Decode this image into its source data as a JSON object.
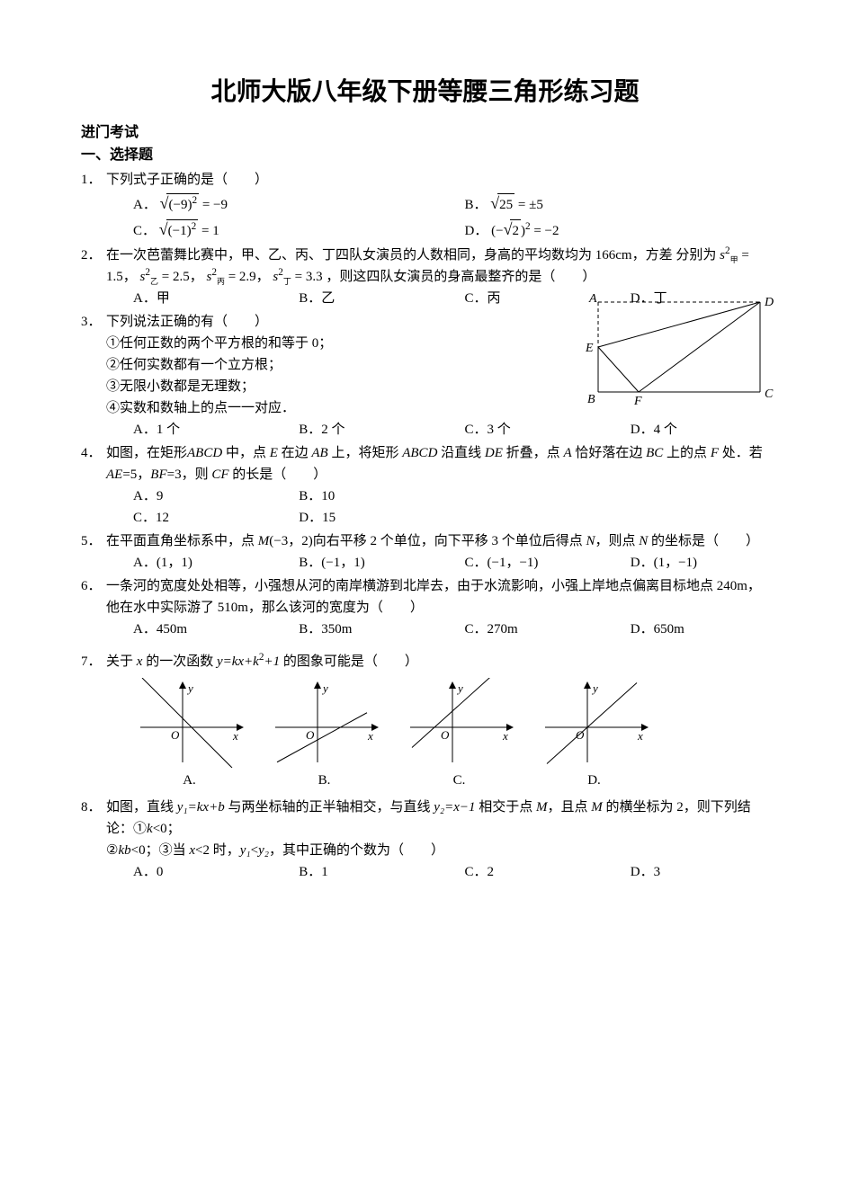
{
  "title": "北师大版八年级下册等腰三角形练习题",
  "subheading1": "进门考试",
  "section1": "一、选择题",
  "q1": {
    "num": "1．",
    "stem": "下列式子正确的是（　　）",
    "A_pre": "A．",
    "A_expr_arg": "(−9)",
    "A_expr_sup": "2",
    "A_tail": " = −9",
    "B_pre": "B．",
    "B_arg": "25",
    "B_tail": " = ±5",
    "C_pre": "C．",
    "C_arg": "(−1)",
    "C_sup": "2",
    "C_tail": " = 1",
    "D_pre": "D．",
    "D_l": "(−",
    "D_arg": "2",
    "D_r": ")",
    "D_sup": "2",
    "D_tail": " = −2"
  },
  "q2": {
    "num": "2．",
    "stem_a": "在一次芭蕾舞比赛中，甲、乙、丙、丁四队女演员的人数相同，身高的平均数均为 166cm，方差",
    "stem_b1": "分别为",
    "s1": "s",
    "sub1": "甲",
    "sup": "2",
    "v1": " = 1.5，",
    "s2": "s",
    "sub2": "乙",
    "v2": " = 2.5，",
    "s3": "s",
    "sub3": "丙",
    "v3": " = 2.9，",
    "s4": "s",
    "sub4": "丁",
    "v4": " = 3.3",
    "stem_b2": "，则这四队女演员的身高最整齐的是（　　）",
    "A": "A．甲",
    "B": "B．乙",
    "C": "C．丙",
    "D": "D．丁"
  },
  "q3": {
    "num": "3．",
    "stem": "下列说法正确的有（　　）",
    "l1": "①任何正数的两个平方根的和等于 0；",
    "l2": "②任何实数都有一个立方根；",
    "l3": "③无限小数都是无理数；",
    "l4": "④实数和数轴上的点一一对应．",
    "A": "A．1 个",
    "B": "B．2 个",
    "C": "C．3 个",
    "D": "D．4 个"
  },
  "q4": {
    "num": "4．",
    "stem1": "如图，在矩形",
    "ABCD1": "ABCD",
    "stem2": " 中，点 ",
    "E1": "E",
    "stem3": " 在边 ",
    "AB1": "AB",
    "stem4": " 上，将矩形 ",
    "ABCD2": "ABCD",
    "stem5": " 沿直线 ",
    "DE1": "DE",
    "stem6": " 折叠，点 ",
    "A1": "A",
    "stem7": " 恰好落在边 ",
    "BC1": "BC",
    "stem8": "上的点 ",
    "F1": "F",
    "stem9": " 处．若 ",
    "AE2": "AE",
    "v1": "=5，",
    "BF2": "BF",
    "v2": "=3，则 ",
    "CF2": "CF",
    "stem10": " 的长是（　　）",
    "A": "A．9",
    "B": "B．10",
    "C": "C．12",
    "D": "D．15",
    "fig": {
      "labels": {
        "A": "A",
        "B": "B",
        "C": "C",
        "D": "D",
        "E": "E",
        "F": "F"
      },
      "stroke": "#000"
    }
  },
  "q5": {
    "num": "5．",
    "stem_a": "在平面直角坐标系中，点 ",
    "M": "M",
    "coords": "(−3，2)",
    "stem_b": "向右平移 2 个单位，向下平移 3 个单位后得点 ",
    "N": "N",
    "stem_c": "，则点 ",
    "N2": "N",
    "stem_d": " 的坐标是（　　）",
    "A": "A．(1，1)",
    "B": "B．(−1，1)",
    "C": "C．(−1，−1)",
    "D": "D．(1，−1)"
  },
  "q6": {
    "num": "6．",
    "stem": "一条河的宽度处处相等，小强想从河的南岸横游到北岸去，由于水流影响，小强上岸地点偏离目标地点 240m，他在水中实际游了 510m，那么该河的宽度为（　　）",
    "A": "A．450m",
    "B": "B．350m",
    "C": "C．270m",
    "D": "D．650m"
  },
  "q7": {
    "num": "7．",
    "stem_a": "关于 ",
    "x": "x",
    "stem_b": " 的一次函数 ",
    "eq": "y=kx+k",
    "sup": "2",
    "eq2": "+1",
    "stem_c": " 的图象可能是（　　）",
    "graphs": {
      "xlabel": "x",
      "ylabel": "y",
      "O": "O",
      "axis_color": "#000",
      "A": {
        "label": "A.",
        "slope": -1.0,
        "intercept": 10
      },
      "B": {
        "label": "B.",
        "slope": 0.55,
        "intercept": -14
      },
      "C": {
        "label": "C.",
        "slope": 0.9,
        "intercept": 18
      },
      "D": {
        "label": "D.",
        "slope": 0.9,
        "intercept": 0
      }
    }
  },
  "q8": {
    "num": "8．",
    "stem_a": "如图，直线 ",
    "y1eq": "y₁=kx+b",
    "stem_b": " 与两坐标轴的正半轴相交，与直线 ",
    "y2eq": "y₂=x−1",
    "stem_c": " 相交于点 ",
    "M1": "M",
    "stem_d": "，且点 ",
    "M2": "M",
    "stem_e": " 的横坐标为 2，则下列结论：①",
    "k": "k",
    "c1": "<0；",
    "c2": "②",
    "kb": "kb",
    "c3": "<0；③当 ",
    "x2": "x",
    "c4": "<2 时，",
    "y1": "y₁",
    "lt": "<",
    "y2": "y₂",
    "c5": "，其中正确的个数为（　　）",
    "A": "A．0",
    "B": "B．1",
    "C": "C．2",
    "D": "D．3"
  }
}
